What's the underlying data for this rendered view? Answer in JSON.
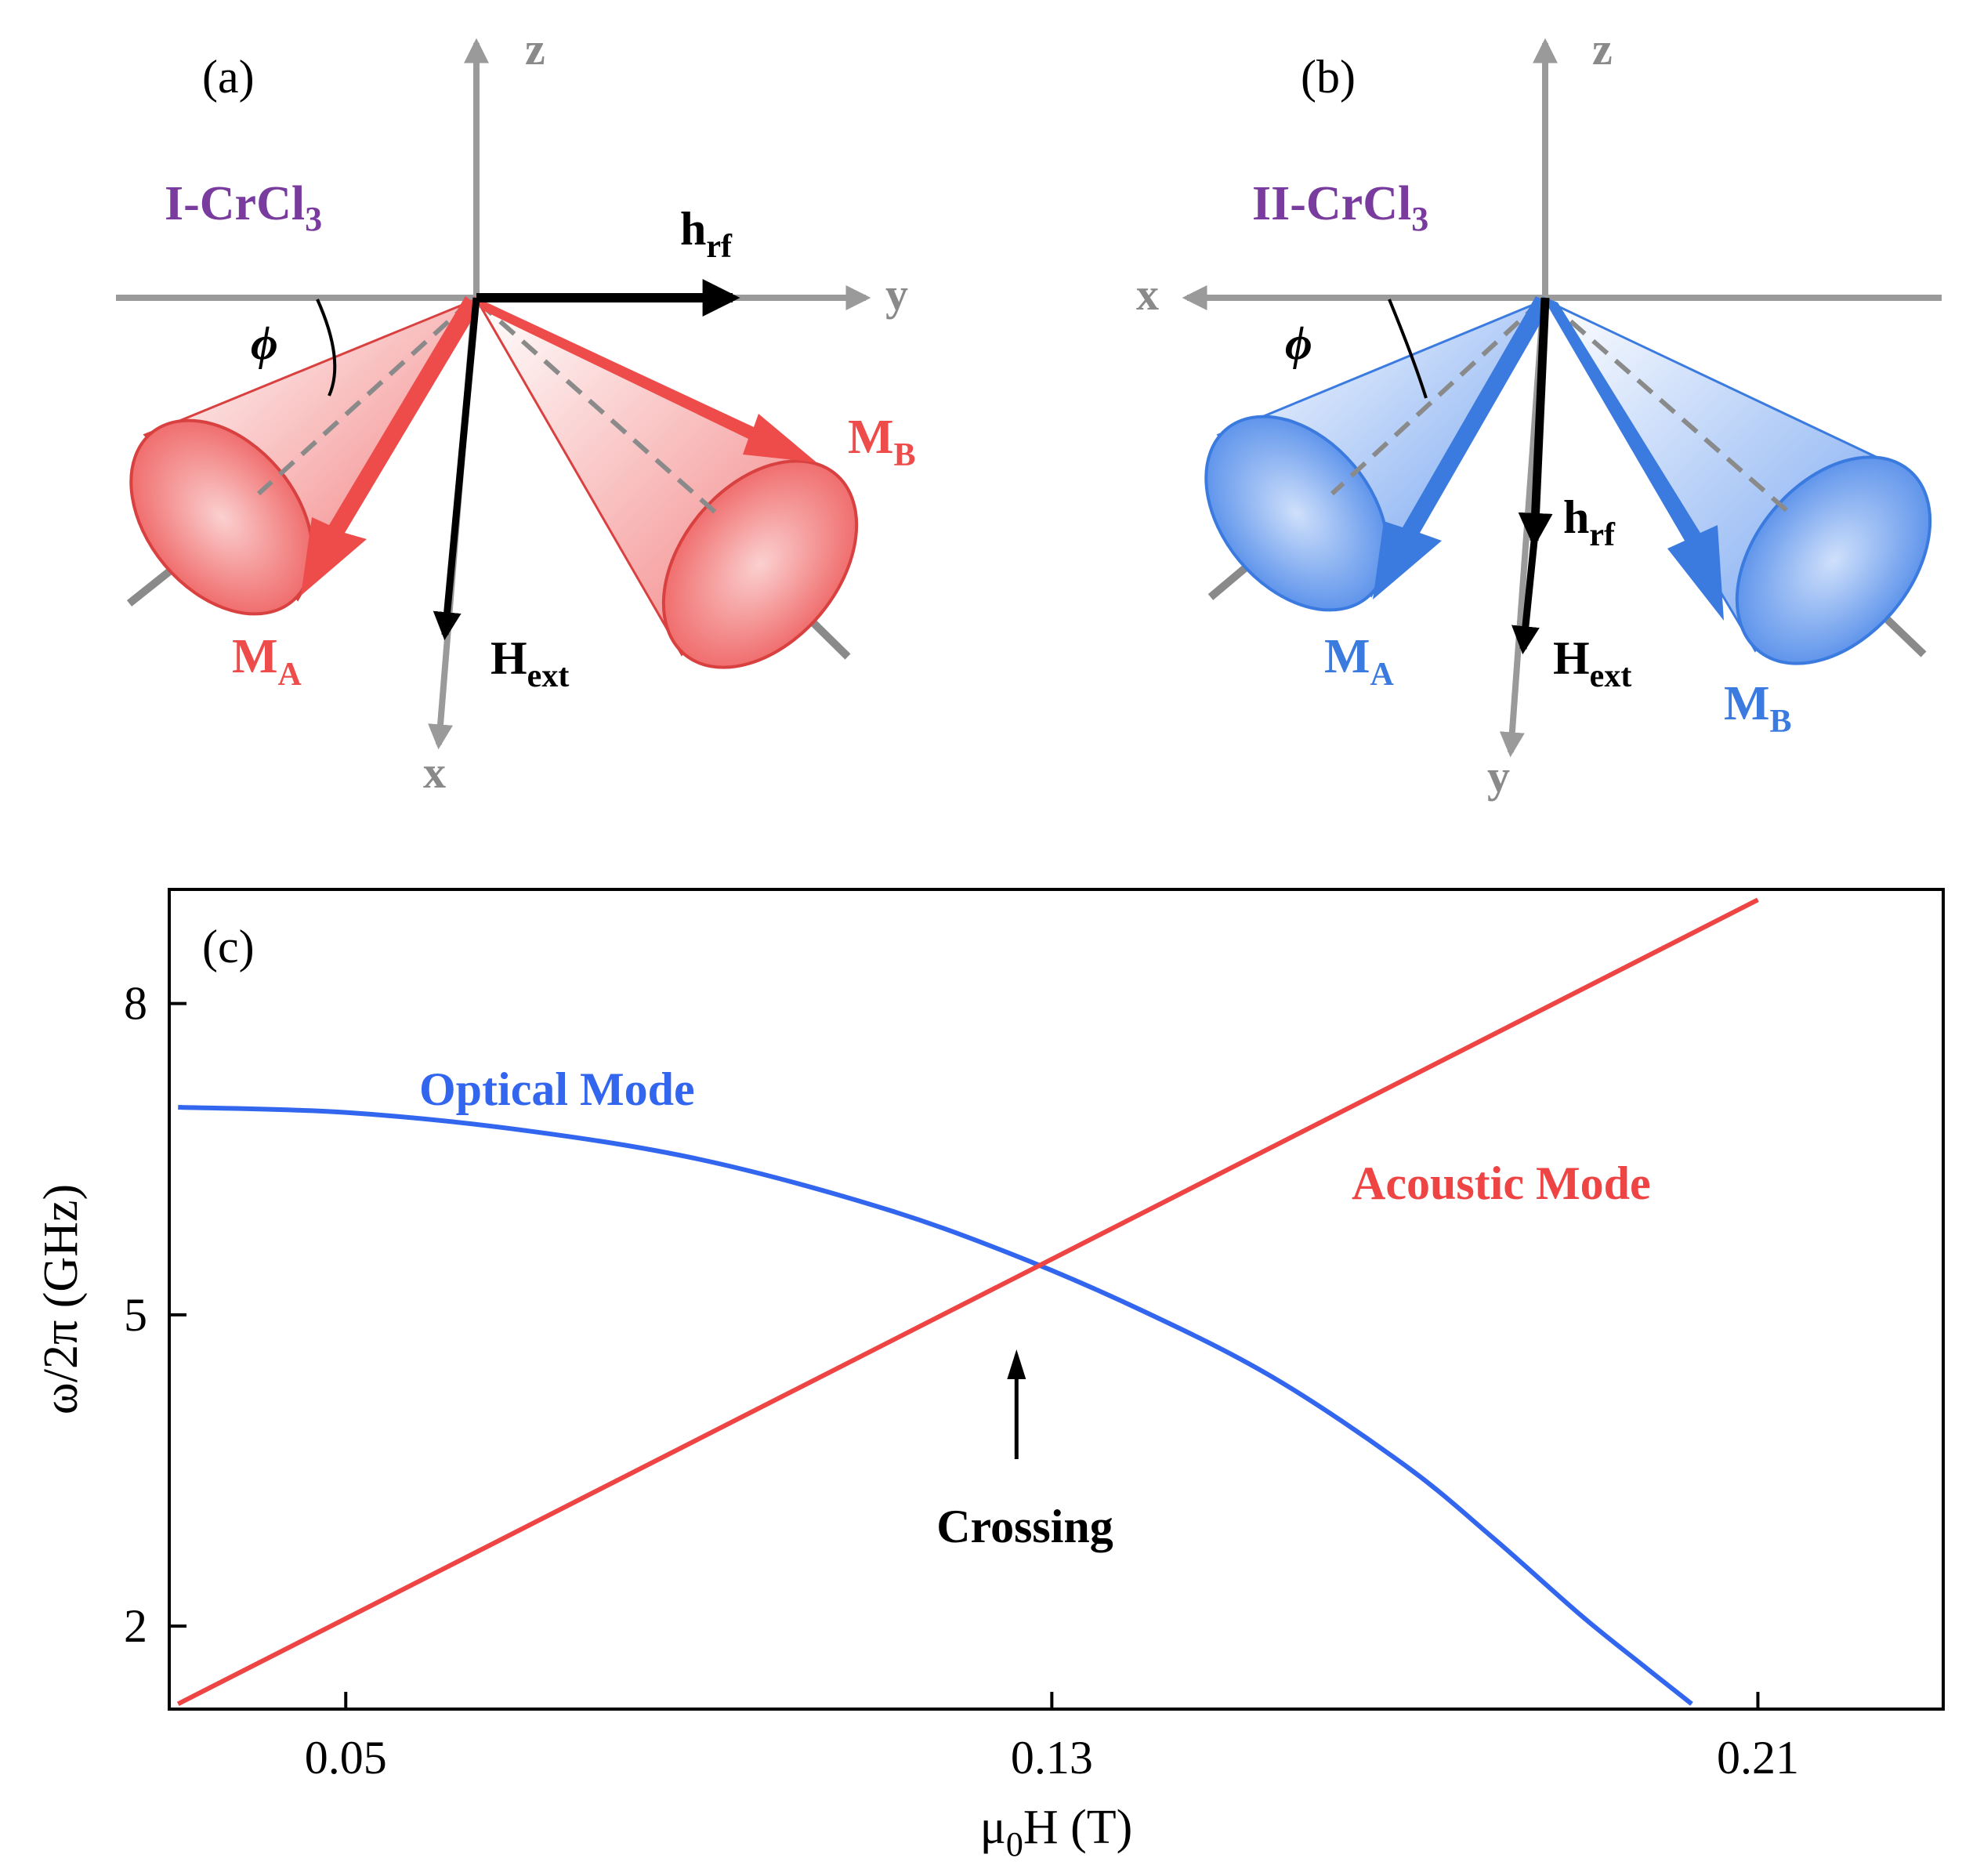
{
  "panel_a": {
    "label": "(a)",
    "material": "I-CrCl",
    "material_sub": "3",
    "axes": {
      "z": "z",
      "y": "y",
      "x": "x"
    },
    "angle": "ϕ",
    "vectors": {
      "hrf": "h",
      "hrf_sub": "rf",
      "hext": "H",
      "hext_sub": "ext",
      "ma": "M",
      "ma_sub": "A",
      "mb": "M",
      "mb_sub": "B"
    },
    "color": "#ee4b4b"
  },
  "panel_b": {
    "label": "(b)",
    "material": "II-CrCl",
    "material_sub": "3",
    "axes": {
      "z": "z",
      "x": "x",
      "y": "y"
    },
    "angle": "ϕ",
    "vectors": {
      "hrf": "h",
      "hrf_sub": "rf",
      "hext": "H",
      "hext_sub": "ext",
      "ma": "M",
      "ma_sub": "A",
      "mb": "M",
      "mb_sub": "B"
    },
    "color": "#3b7be0"
  },
  "chart_data": {
    "type": "line",
    "panel_label": "(c)",
    "xlabel": "μ",
    "xlabel_sub": "0",
    "xlabel_rest": "H (T)",
    "ylabel": "ω/2π (GHz)",
    "xlim": [
      0.03,
      0.231
    ],
    "ylim": [
      1.2,
      9.1
    ],
    "xticks": [
      0.05,
      0.13,
      0.21
    ],
    "xtick_labels": [
      "0.05",
      "0.13",
      "0.21"
    ],
    "yticks": [
      2,
      5,
      8
    ],
    "ytick_labels": [
      "2",
      "5",
      "8"
    ],
    "series": [
      {
        "name": "Optical Mode",
        "color": "#3366ee",
        "x": [
          0.031,
          0.05,
          0.07,
          0.09,
          0.11,
          0.125,
          0.14,
          0.155,
          0.17,
          0.18,
          0.19,
          0.197,
          0.2025
        ],
        "y": [
          7.0,
          6.95,
          6.78,
          6.5,
          6.05,
          5.6,
          5.05,
          4.4,
          3.55,
          2.85,
          2.1,
          1.62,
          1.25
        ]
      },
      {
        "name": "Acoustic Mode",
        "color": "#ee4444",
        "x": [
          0.031,
          0.21
        ],
        "y": [
          1.25,
          9.0
        ]
      }
    ],
    "annotations": {
      "crossing": "Crossing",
      "crossing_x": 0.126
    }
  }
}
